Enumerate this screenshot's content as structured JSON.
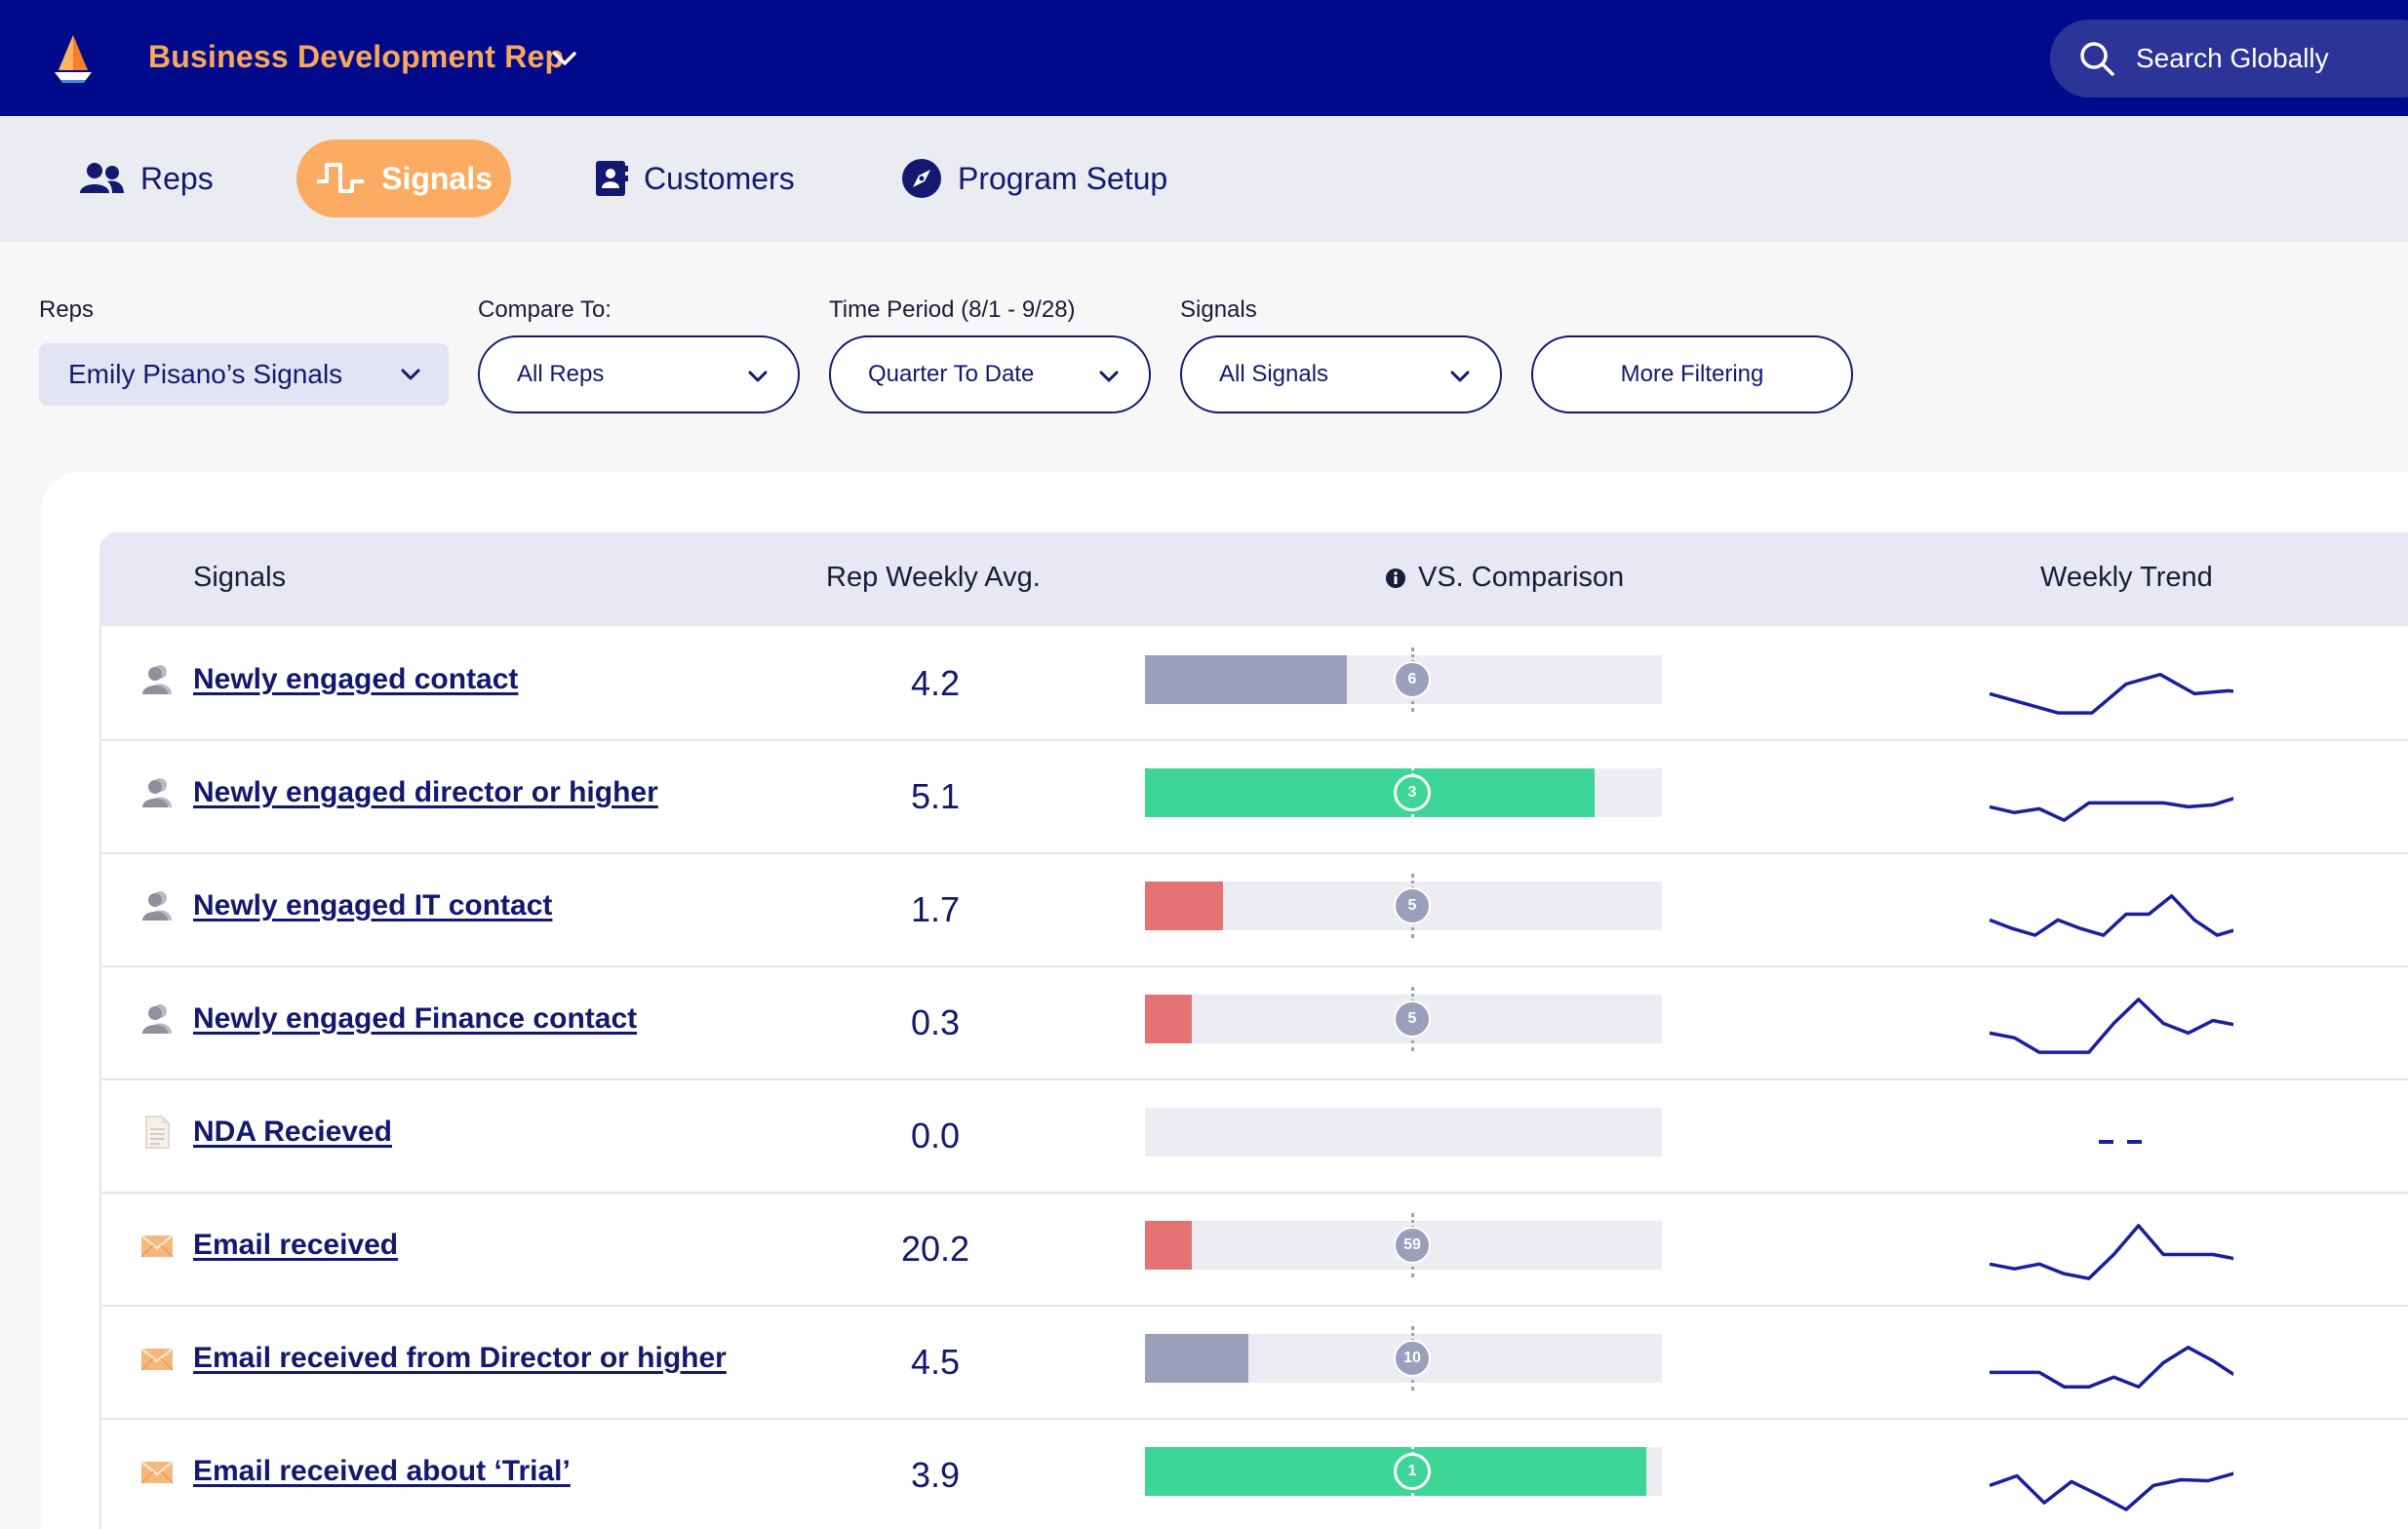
{
  "topbar": {
    "role_title": "Business Development Rep",
    "search_label": "Search Globally"
  },
  "nav": {
    "items": [
      {
        "label": "Reps",
        "icon": "users-icon",
        "active": false
      },
      {
        "label": "Signals",
        "icon": "signal-wave-icon",
        "active": true
      },
      {
        "label": "Customers",
        "icon": "contact-book-icon",
        "active": false
      },
      {
        "label": "Program Setup",
        "icon": "compass-icon",
        "active": false
      }
    ]
  },
  "filters": {
    "reps": {
      "label": "Reps",
      "value": "Emily Pisano’s Signals"
    },
    "compare": {
      "label": "Compare To:",
      "value": "All Reps"
    },
    "period": {
      "label": "Time Period (8/1 - 9/28)",
      "value": "Quarter To Date"
    },
    "signals": {
      "label": "Signals",
      "value": "All Signals"
    },
    "more_label": "More Filtering"
  },
  "table": {
    "headers": {
      "signals": "Signals",
      "avg": "Rep Weekly Avg.",
      "comparison": "VS. Comparison",
      "trend": "Weekly Trend"
    },
    "rows": [
      {
        "icon": "person-icon",
        "signal": "Newly engaged contact",
        "avg": "4.2",
        "comparison": "6",
        "fill": 0.39,
        "status": "neutral",
        "trend": [
          5,
          4,
          3,
          3,
          6,
          7,
          5,
          5.3,
          5
        ]
      },
      {
        "icon": "person-icon",
        "signal": "Newly engaged director or higher",
        "avg": "5.1",
        "comparison": "3",
        "fill": 0.87,
        "status": "above",
        "trend": [
          5,
          4.4,
          4.8,
          3.6,
          5.4,
          5.4,
          5.4,
          5.4,
          5.0,
          5.2,
          6,
          4.8
        ]
      },
      {
        "icon": "person-icon",
        "signal": "Newly engaged IT contact",
        "avg": "1.7",
        "comparison": "5",
        "fill": 0.15,
        "status": "below",
        "trend": [
          5,
          4.1,
          3.4,
          5,
          4.1,
          3.4,
          5.6,
          5.6,
          7.5,
          5,
          3.4,
          4.1,
          3.1
        ]
      },
      {
        "icon": "person-icon",
        "signal": "Newly engaged Finance contact",
        "avg": "0.3",
        "comparison": "5",
        "fill": 0.09,
        "status": "below",
        "trend": [
          5,
          4.5,
          3,
          3,
          3,
          6,
          8.5,
          6,
          5,
          6.3,
          5.8,
          5.8
        ]
      },
      {
        "icon": "document-icon",
        "signal": "NDA Recieved",
        "avg": "0.0",
        "comparison": "",
        "fill": 0,
        "status": "none",
        "trend": []
      },
      {
        "icon": "envelope-icon",
        "signal": "Email received",
        "avg": "20.2",
        "comparison": "59",
        "fill": 0.09,
        "status": "below",
        "trend": [
          4.5,
          4,
          4.5,
          3.5,
          3,
          5.5,
          8.5,
          5.5,
          5.5,
          5.5,
          5,
          8.7
        ]
      },
      {
        "icon": "envelope-icon",
        "signal": "Email received from Director or higher",
        "avg": "4.5",
        "comparison": "10",
        "fill": 0.2,
        "status": "neutral",
        "trend": [
          5,
          5,
          5,
          3.5,
          3.5,
          4.5,
          3.5,
          6,
          7.6,
          6.2,
          4.5,
          7.6
        ]
      },
      {
        "icon": "envelope-icon",
        "signal": "Email received about ‘Trial’",
        "avg": "3.9",
        "comparison": "1",
        "fill": 0.97,
        "status": "above",
        "trend": [
          5,
          6,
          3.2,
          5.4,
          4,
          2.5,
          5,
          5.6,
          5.5,
          6.3,
          6.5
        ]
      }
    ]
  },
  "colors": {
    "topbar": "#020a8c",
    "accent": "#fbac62",
    "above": "#3dd598",
    "below": "#e57373",
    "neutral": "#9a9fbc",
    "trend_line": "#1a1f9e"
  }
}
